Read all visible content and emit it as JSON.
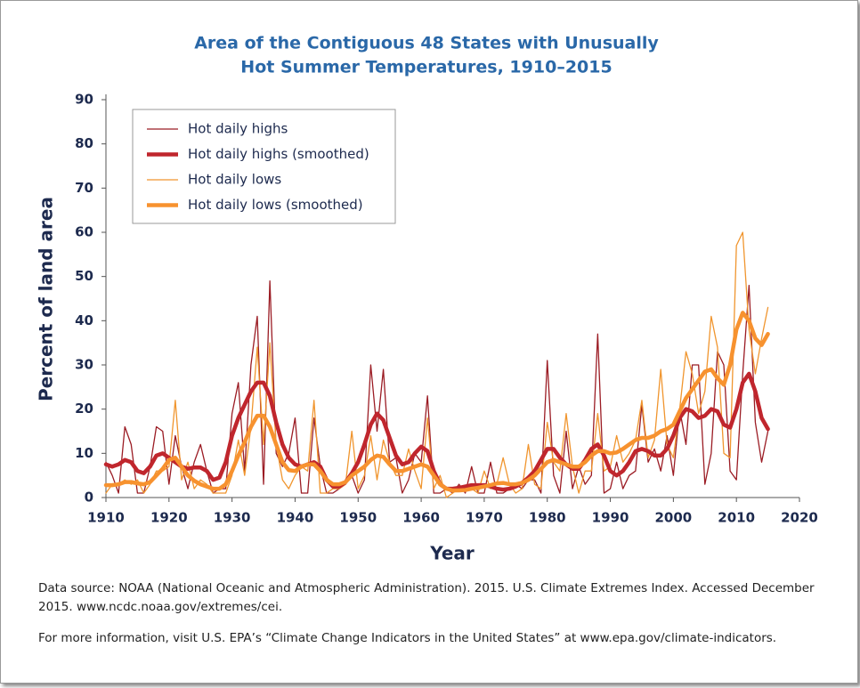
{
  "chart_data": {
    "type": "line",
    "title": [
      "Area of the Contiguous 48 States with Unusually",
      "Hot Summer Temperatures, 1910–2015"
    ],
    "x_label": "Year",
    "y_label": "Percent of land area",
    "x": [
      1910,
      1911,
      1912,
      1913,
      1914,
      1915,
      1916,
      1917,
      1918,
      1919,
      1920,
      1921,
      1922,
      1923,
      1924,
      1925,
      1926,
      1927,
      1928,
      1929,
      1930,
      1931,
      1932,
      1933,
      1934,
      1935,
      1936,
      1937,
      1938,
      1939,
      1940,
      1941,
      1942,
      1943,
      1944,
      1945,
      1946,
      1947,
      1948,
      1949,
      1950,
      1951,
      1952,
      1953,
      1954,
      1955,
      1956,
      1957,
      1958,
      1959,
      1960,
      1961,
      1962,
      1963,
      1964,
      1965,
      1966,
      1967,
      1968,
      1969,
      1970,
      1971,
      1972,
      1973,
      1974,
      1975,
      1976,
      1977,
      1978,
      1979,
      1980,
      1981,
      1982,
      1983,
      1984,
      1985,
      1986,
      1987,
      1988,
      1989,
      1990,
      1991,
      1992,
      1993,
      1994,
      1995,
      1996,
      1997,
      1998,
      1999,
      2000,
      2001,
      2002,
      2003,
      2004,
      2005,
      2006,
      2007,
      2008,
      2009,
      2010,
      2011,
      2012,
      2013,
      2014,
      2015
    ],
    "series": [
      {
        "name": "Hot daily highs",
        "color": "#9b1c24",
        "values": [
          8,
          5,
          1,
          16,
          12,
          1,
          1,
          7,
          16,
          15,
          3,
          14,
          7,
          2,
          8,
          12,
          6,
          1,
          2,
          2,
          19,
          26,
          6,
          30,
          41,
          3,
          49,
          10,
          7,
          10,
          18,
          1,
          1,
          18,
          7,
          1,
          1,
          2,
          3,
          5,
          1,
          4,
          30,
          15,
          29,
          8,
          9,
          1,
          4,
          10,
          8,
          23,
          1,
          1,
          2,
          1,
          3,
          1,
          7,
          1,
          1,
          8,
          1,
          1,
          2,
          3,
          2,
          4,
          4,
          1,
          31,
          5,
          1,
          15,
          2,
          7,
          3,
          5,
          37,
          1,
          2,
          8,
          2,
          5,
          6,
          21,
          8,
          11,
          6,
          14,
          5,
          20,
          12,
          30,
          30,
          3,
          10,
          33,
          30,
          6,
          4,
          28,
          48,
          17,
          8,
          15
        ]
      },
      {
        "name": "Hot daily highs (smoothed)",
        "color": "#c0262d",
        "values": [
          7.5,
          7,
          7.5,
          8.5,
          8,
          6,
          5.5,
          7,
          9.5,
          10,
          9,
          8,
          7,
          6.5,
          6.8,
          6.8,
          6,
          4,
          4.5,
          8,
          14,
          18,
          21,
          24,
          26,
          26,
          23,
          17,
          12,
          9,
          7.5,
          7,
          7.5,
          8,
          7,
          4,
          2.5,
          2.5,
          3.5,
          5.5,
          8,
          12,
          16.5,
          19,
          17.5,
          13.5,
          9.5,
          7.5,
          8,
          10,
          11.5,
          10.5,
          6,
          3,
          2,
          2,
          2.2,
          2.5,
          2.8,
          2.8,
          2.8,
          2.5,
          2,
          1.8,
          2,
          2.5,
          3.3,
          4.5,
          6,
          8.5,
          11,
          11,
          9,
          7.5,
          6.5,
          6.5,
          8.5,
          11,
          12,
          9.5,
          6,
          5,
          6,
          8,
          10.5,
          11,
          10.5,
          9.5,
          9.5,
          11,
          14,
          18,
          20,
          19.5,
          18,
          18.5,
          20,
          19.5,
          16.5,
          15.8,
          20,
          26,
          28,
          24,
          18,
          15.5
        ]
      },
      {
        "name": "Hot daily lows",
        "color": "#f0952e",
        "values": [
          1,
          3,
          3,
          4,
          3,
          4,
          1,
          3,
          6,
          6,
          7,
          22,
          4,
          8,
          2,
          4,
          3,
          1,
          1,
          1,
          5,
          13,
          5,
          16,
          34,
          12,
          35,
          12,
          4,
          2,
          5,
          7,
          6,
          22,
          1,
          1,
          2,
          2,
          3,
          15,
          2,
          5,
          14,
          4,
          13,
          8,
          5,
          5,
          11,
          6,
          2,
          18,
          2,
          5,
          0,
          1,
          2,
          2,
          2,
          1,
          6,
          2,
          3,
          9,
          3,
          1,
          2,
          12,
          3,
          2,
          17,
          8,
          6,
          19,
          7,
          1,
          6,
          6,
          19,
          6,
          7,
          14,
          8,
          10,
          13,
          22,
          9,
          13,
          29,
          12,
          9,
          20,
          33,
          28,
          19,
          24,
          41,
          34,
          10,
          9,
          57,
          60,
          38,
          28,
          36,
          43
        ]
      },
      {
        "name": "Hot daily lows (smoothed)",
        "color": "#f7922f",
        "values": [
          2.8,
          2.8,
          3,
          3.5,
          3.5,
          3.2,
          3,
          3.5,
          5,
          6.5,
          8.5,
          9,
          7,
          5,
          3.8,
          3,
          2.5,
          2,
          2,
          3,
          6,
          9.5,
          12.5,
          16,
          18.5,
          18.5,
          16,
          12,
          8,
          6.2,
          6,
          7,
          7.5,
          7.5,
          6,
          4,
          3,
          3,
          3.5,
          5,
          6,
          7,
          8.5,
          9.5,
          9.2,
          7.5,
          6,
          6,
          6.5,
          7,
          7.5,
          7,
          5,
          3,
          2,
          1.6,
          1.6,
          1.7,
          2,
          2.2,
          2.5,
          2.8,
          3.2,
          3.3,
          3,
          3,
          3.3,
          4,
          5,
          6.5,
          8,
          8.5,
          8,
          7.5,
          7,
          7,
          8,
          9.5,
          10.5,
          10.5,
          10,
          10.2,
          11,
          12,
          13,
          13.5,
          13.5,
          14,
          15,
          15.5,
          16.5,
          19.5,
          22.5,
          24.5,
          26.5,
          28.5,
          29,
          27,
          25.5,
          30,
          38,
          41.8,
          40,
          36,
          34.5,
          37
        ]
      }
    ],
    "xlim": [
      1910,
      2020
    ],
    "xticks": [
      1910,
      1920,
      1930,
      1940,
      1950,
      1960,
      1970,
      1980,
      1990,
      2000,
      2010,
      2020
    ],
    "ylim": [
      0,
      90
    ],
    "yticks": [
      0,
      10,
      20,
      30,
      40,
      50,
      60,
      70,
      80,
      90
    ],
    "legend": "upper left"
  },
  "notes": [
    "Data source: NOAA (National Oceanic and Atmospheric Administration). 2015. U.S. Climate Extremes Index. Accessed December 2015. www.ncdc.noaa.gov/extremes/cei.",
    "For more information, visit U.S. EPA’s “Climate Change Indicators in the United States” at www.epa.gov/climate-indicators."
  ]
}
